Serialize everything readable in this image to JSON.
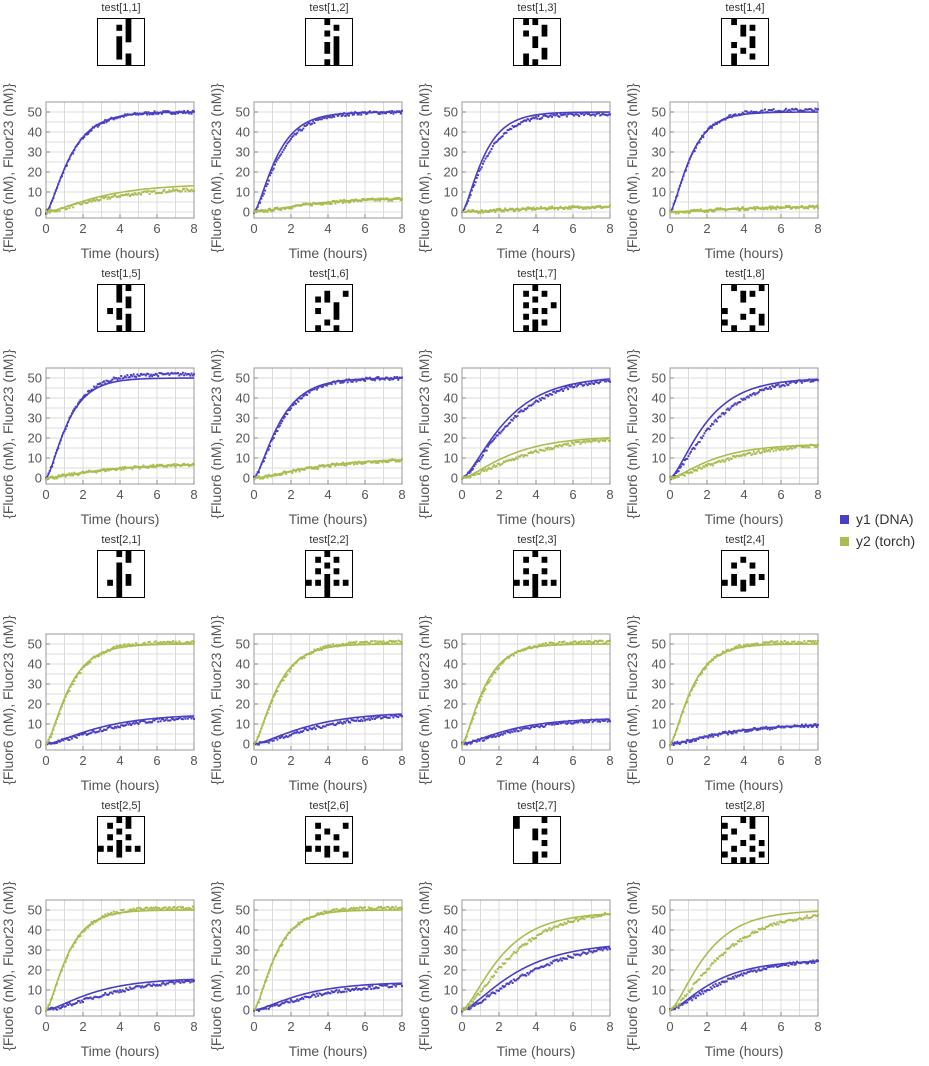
{
  "x_axis_label": "Time (hours)",
  "y_axis_label": "{Fluor6 (nM), Fluor23 (nM)}",
  "legend": [
    {
      "label": "y1 (DNA)",
      "color": "#4a3fc2"
    },
    {
      "label": "y2 (torch)",
      "color": "#a9bd4f"
    }
  ],
  "chart_data": [
    {
      "title": "test[1,1]",
      "type": "scatter",
      "xlim": [
        0,
        8
      ],
      "ylim": [
        -3,
        55
      ],
      "x_ticks": [
        0,
        2,
        4,
        6,
        8
      ],
      "y_ticks": [
        0,
        10,
        20,
        30,
        40,
        50
      ],
      "grid": true,
      "series": [
        {
          "name": "y1 (DNA)",
          "plateau": 50,
          "rate": 0.9,
          "data_plateau": 50,
          "data_rate": 0.88
        },
        {
          "name": "y2 (torch)",
          "plateau": 14,
          "rate": 0.4,
          "data_plateau": 12,
          "data_rate": 0.38
        }
      ],
      "pattern": [
        "00010",
        "00110",
        "00010",
        "00110",
        "00100",
        "00100",
        "00110",
        "00010"
      ]
    },
    {
      "title": "test[1,2]",
      "type": "scatter",
      "xlim": [
        0,
        8
      ],
      "ylim": [
        -3,
        55
      ],
      "x_ticks": [
        0,
        2,
        4,
        6,
        8
      ],
      "y_ticks": [
        0,
        10,
        20,
        30,
        40,
        50
      ],
      "grid": true,
      "series": [
        {
          "name": "y1 (DNA)",
          "plateau": 50,
          "rate": 0.95,
          "data_plateau": 50,
          "data_rate": 0.85
        },
        {
          "name": "y2 (torch)",
          "plateau": 7,
          "rate": 0.4,
          "data_plateau": 7,
          "data_rate": 0.38
        }
      ],
      "pattern": [
        "00100",
        "00010",
        "00100",
        "00010",
        "00110",
        "00110",
        "00010",
        "00110"
      ]
    },
    {
      "title": "test[1,3]",
      "type": "scatter",
      "xlim": [
        0,
        8
      ],
      "ylim": [
        -3,
        55
      ],
      "x_ticks": [
        0,
        2,
        4,
        6,
        8
      ],
      "y_ticks": [
        0,
        10,
        20,
        30,
        40,
        50
      ],
      "grid": true,
      "series": [
        {
          "name": "y1 (DNA)",
          "plateau": 50,
          "rate": 1.0,
          "data_plateau": 49,
          "data_rate": 0.9
        },
        {
          "name": "y2 (torch)",
          "plateau": 3,
          "rate": 0.3,
          "data_plateau": 3,
          "data_rate": 0.3
        }
      ],
      "pattern": [
        "01100",
        "00010",
        "01010",
        "00100",
        "00100",
        "00010",
        "01010",
        "01100"
      ]
    },
    {
      "title": "test[1,4]",
      "type": "scatter",
      "xlim": [
        0,
        8
      ],
      "ylim": [
        -3,
        55
      ],
      "x_ticks": [
        0,
        2,
        4,
        6,
        8
      ],
      "y_ticks": [
        0,
        10,
        20,
        30,
        40,
        50
      ],
      "grid": true,
      "series": [
        {
          "name": "y1 (DNA)",
          "plateau": 50,
          "rate": 1.05,
          "data_plateau": 51,
          "data_rate": 1.0
        },
        {
          "name": "y2 (torch)",
          "plateau": 3,
          "rate": 0.3,
          "data_plateau": 3,
          "data_rate": 0.3
        }
      ],
      "pattern": [
        "01000",
        "00110",
        "00100",
        "00010",
        "01010",
        "00100",
        "01010",
        "01000"
      ]
    },
    {
      "title": "test[1,5]",
      "type": "scatter",
      "xlim": [
        0,
        8
      ],
      "ylim": [
        -3,
        55
      ],
      "x_ticks": [
        0,
        2,
        4,
        6,
        8
      ],
      "y_ticks": [
        0,
        10,
        20,
        30,
        40,
        50
      ],
      "grid": true,
      "series": [
        {
          "name": "y1 (DNA)",
          "plateau": 50,
          "rate": 1.0,
          "data_plateau": 52,
          "data_rate": 0.95
        },
        {
          "name": "y2 (torch)",
          "plateau": 7,
          "rate": 0.4,
          "data_plateau": 7,
          "data_rate": 0.38
        }
      ],
      "pattern": [
        "00110",
        "00100",
        "00110",
        "00010",
        "01100",
        "00110",
        "00010",
        "00110"
      ]
    },
    {
      "title": "test[1,6]",
      "type": "scatter",
      "xlim": [
        0,
        8
      ],
      "ylim": [
        -3,
        55
      ],
      "x_ticks": [
        0,
        2,
        4,
        6,
        8
      ],
      "y_ticks": [
        0,
        10,
        20,
        30,
        40,
        50
      ],
      "grid": true,
      "series": [
        {
          "name": "y1 (DNA)",
          "plateau": 50,
          "rate": 0.85,
          "data_plateau": 50,
          "data_rate": 0.8
        },
        {
          "name": "y2 (torch)",
          "plateau": 10,
          "rate": 0.35,
          "data_plateau": 10,
          "data_rate": 0.33
        }
      ],
      "pattern": [
        "00000",
        "00101",
        "01100",
        "00010",
        "01010",
        "00010",
        "00100",
        "01010"
      ]
    },
    {
      "title": "test[1,7]",
      "type": "scatter",
      "xlim": [
        0,
        8
      ],
      "ylim": [
        -3,
        55
      ],
      "x_ticks": [
        0,
        2,
        4,
        6,
        8
      ],
      "y_ticks": [
        0,
        10,
        20,
        30,
        40,
        50
      ],
      "grid": true,
      "series": [
        {
          "name": "y1 (DNA)",
          "plateau": 51,
          "rate": 0.5,
          "data_plateau": 51,
          "data_rate": 0.45
        },
        {
          "name": "y2 (torch)",
          "plateau": 21,
          "rate": 0.45,
          "data_plateau": 22,
          "data_rate": 0.32
        }
      ],
      "pattern": [
        "00100",
        "01010",
        "00100",
        "01001",
        "00110",
        "01000",
        "00110",
        "01100"
      ]
    },
    {
      "title": "test[1,8]",
      "type": "scatter",
      "xlim": [
        0,
        8
      ],
      "ylim": [
        -3,
        55
      ],
      "x_ticks": [
        0,
        2,
        4,
        6,
        8
      ],
      "y_ticks": [
        0,
        10,
        20,
        30,
        40,
        50
      ],
      "grid": true,
      "series": [
        {
          "name": "y1 (DNA)",
          "plateau": 50,
          "rate": 0.6,
          "data_plateau": 51,
          "data_rate": 0.48
        },
        {
          "name": "y2 (torch)",
          "plateau": 17,
          "rate": 0.5,
          "data_plateau": 18,
          "data_rate": 0.35
        }
      ],
      "pattern": [
        "01001",
        "00110",
        "00100",
        "00000",
        "10010",
        "00101",
        "10001",
        "01010"
      ]
    },
    {
      "title": "test[2,1]",
      "type": "scatter",
      "xlim": [
        0,
        8
      ],
      "ylim": [
        -3,
        55
      ],
      "x_ticks": [
        0,
        2,
        4,
        6,
        8
      ],
      "y_ticks": [
        0,
        10,
        20,
        30,
        40,
        50
      ],
      "grid": true,
      "series": [
        {
          "name": "y1 (DNA)",
          "plateau": 15,
          "rate": 0.4,
          "data_plateau": 15,
          "data_rate": 0.33
        },
        {
          "name": "y2 (torch)",
          "plateau": 50,
          "rate": 0.95,
          "data_plateau": 51,
          "data_rate": 0.88
        }
      ],
      "pattern": [
        "00110",
        "00010",
        "00100",
        "00100",
        "00110",
        "01110",
        "00100",
        "00100"
      ]
    },
    {
      "title": "test[2,2]",
      "type": "scatter",
      "xlim": [
        0,
        8
      ],
      "ylim": [
        -3,
        55
      ],
      "x_ticks": [
        0,
        2,
        4,
        6,
        8
      ],
      "y_ticks": [
        0,
        10,
        20,
        30,
        40,
        50
      ],
      "grid": true,
      "series": [
        {
          "name": "y1 (DNA)",
          "plateau": 16,
          "rate": 0.4,
          "data_plateau": 16,
          "data_rate": 0.32
        },
        {
          "name": "y2 (torch)",
          "plateau": 50,
          "rate": 0.95,
          "data_plateau": 51,
          "data_rate": 0.88
        }
      ],
      "pattern": [
        "00100",
        "01010",
        "00100",
        "01010",
        "00100",
        "11111",
        "00100",
        "00100"
      ]
    },
    {
      "title": "test[2,3]",
      "type": "scatter",
      "xlim": [
        0,
        8
      ],
      "ylim": [
        -3,
        55
      ],
      "x_ticks": [
        0,
        2,
        4,
        6,
        8
      ],
      "y_ticks": [
        0,
        10,
        20,
        30,
        40,
        50
      ],
      "grid": true,
      "series": [
        {
          "name": "y1 (DNA)",
          "plateau": 13,
          "rate": 0.45,
          "data_plateau": 13,
          "data_rate": 0.38
        },
        {
          "name": "y2 (torch)",
          "plateau": 50,
          "rate": 1.0,
          "data_plateau": 51,
          "data_rate": 0.92
        }
      ],
      "pattern": [
        "00100",
        "01010",
        "00000",
        "01010",
        "00100",
        "11111",
        "00100",
        "00100"
      ]
    },
    {
      "title": "test[2,4]",
      "type": "scatter",
      "xlim": [
        0,
        8
      ],
      "ylim": [
        -3,
        55
      ],
      "x_ticks": [
        0,
        2,
        4,
        6,
        8
      ],
      "y_ticks": [
        0,
        10,
        20,
        30,
        40,
        50
      ],
      "grid": true,
      "series": [
        {
          "name": "y1 (DNA)",
          "plateau": 10,
          "rate": 0.4,
          "data_plateau": 10,
          "data_rate": 0.38
        },
        {
          "name": "y2 (torch)",
          "plateau": 50,
          "rate": 1.0,
          "data_plateau": 51,
          "data_rate": 0.95
        }
      ],
      "pattern": [
        "00000",
        "00100",
        "01010",
        "00000",
        "01011",
        "11110",
        "00100",
        "00000"
      ]
    },
    {
      "title": "test[2,5]",
      "type": "scatter",
      "xlim": [
        0,
        8
      ],
      "ylim": [
        -3,
        55
      ],
      "x_ticks": [
        0,
        2,
        4,
        6,
        8
      ],
      "y_ticks": [
        0,
        10,
        20,
        30,
        40,
        50
      ],
      "grid": true,
      "series": [
        {
          "name": "y1 (DNA)",
          "plateau": 16,
          "rate": 0.45,
          "data_plateau": 17,
          "data_rate": 0.3
        },
        {
          "name": "y2 (torch)",
          "plateau": 50,
          "rate": 1.0,
          "data_plateau": 51,
          "data_rate": 0.95
        }
      ],
      "pattern": [
        "00110",
        "01010",
        "00100",
        "01010",
        "00100",
        "11111",
        "00100",
        "00000"
      ]
    },
    {
      "title": "test[2,6]",
      "type": "scatter",
      "xlim": [
        0,
        8
      ],
      "ylim": [
        -3,
        55
      ],
      "x_ticks": [
        0,
        2,
        4,
        6,
        8
      ],
      "y_ticks": [
        0,
        10,
        20,
        30,
        40,
        50
      ],
      "grid": true,
      "series": [
        {
          "name": "y1 (DNA)",
          "plateau": 14,
          "rate": 0.45,
          "data_plateau": 14,
          "data_rate": 0.33
        },
        {
          "name": "y2 (torch)",
          "plateau": 50,
          "rate": 1.0,
          "data_plateau": 51,
          "data_rate": 0.95
        }
      ],
      "pattern": [
        "00000",
        "01001",
        "00100",
        "01010",
        "00000",
        "11110",
        "00101",
        "00000"
      ]
    },
    {
      "title": "test[2,7]",
      "type": "scatter",
      "xlim": [
        0,
        8
      ],
      "ylim": [
        -3,
        55
      ],
      "x_ticks": [
        0,
        2,
        4,
        6,
        8
      ],
      "y_ticks": [
        0,
        10,
        20,
        30,
        40,
        50
      ],
      "grid": true,
      "series": [
        {
          "name": "y1 (DNA)",
          "plateau": 34,
          "rate": 0.4,
          "data_plateau": 36,
          "data_rate": 0.3
        },
        {
          "name": "y2 (torch)",
          "plateau": 49,
          "rate": 0.55,
          "data_plateau": 51,
          "data_rate": 0.42
        }
      ],
      "pattern": [
        "10010",
        "10000",
        "00110",
        "00100",
        "00010",
        "00000",
        "00110",
        "00100"
      ]
    },
    {
      "title": "test[2,8]",
      "type": "scatter",
      "xlim": [
        0,
        8
      ],
      "ylim": [
        -3,
        55
      ],
      "x_ticks": [
        0,
        2,
        4,
        6,
        8
      ],
      "y_ticks": [
        0,
        10,
        20,
        30,
        40,
        50
      ],
      "grid": true,
      "series": [
        {
          "name": "y1 (DNA)",
          "plateau": 25,
          "rate": 0.5,
          "data_plateau": 26,
          "data_rate": 0.4
        },
        {
          "name": "y2 (torch)",
          "plateau": 50,
          "rate": 0.6,
          "data_plateau": 50,
          "data_rate": 0.42
        }
      ],
      "pattern": [
        "00110",
        "10010",
        "01000",
        "10010",
        "00101",
        "01010",
        "10001",
        "01110"
      ]
    }
  ]
}
